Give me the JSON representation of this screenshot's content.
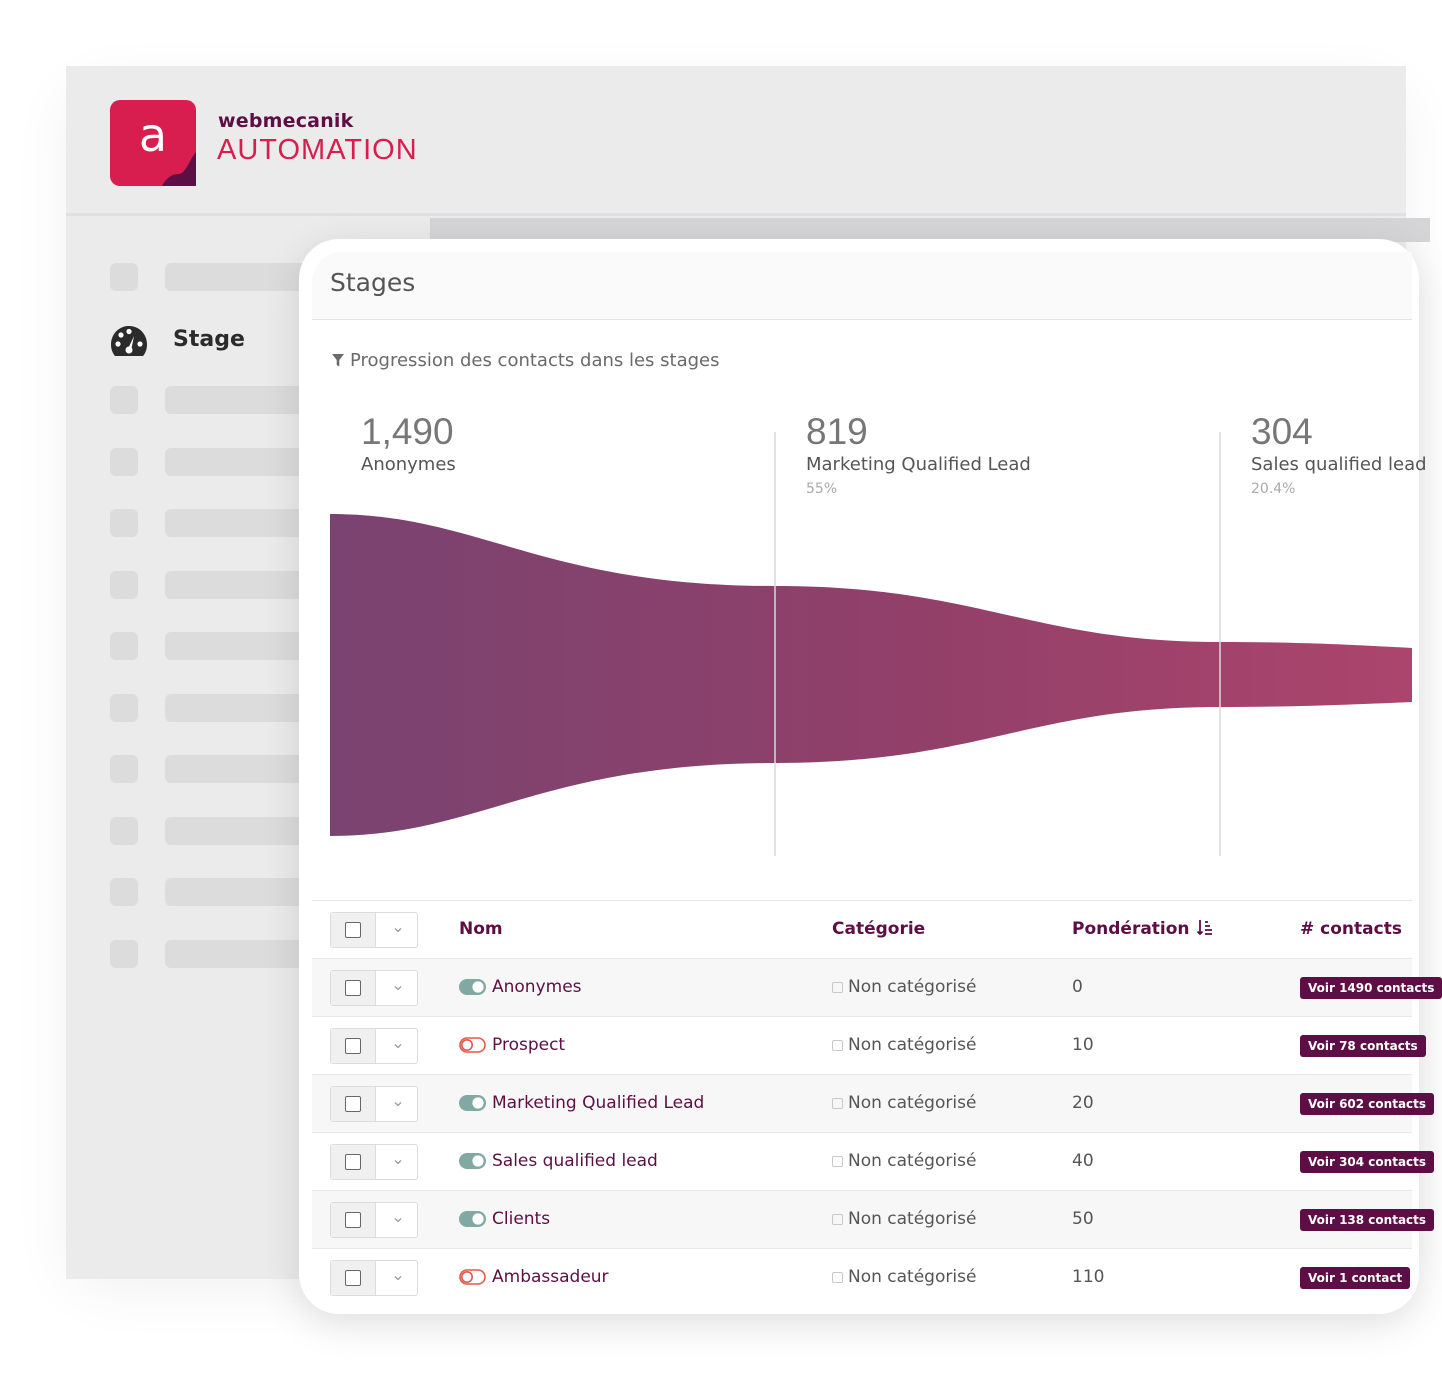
{
  "brand": {
    "logo_letter": "a",
    "name": "webmecanik",
    "product": "AUTOMATION",
    "colors": {
      "primary": "#d81e4e",
      "dark": "#5d0f45"
    }
  },
  "sidebar": {
    "active_item": {
      "label": "Stage",
      "icon": "gauge-icon"
    }
  },
  "panel": {
    "title": "Stages",
    "funnel_caption": "Progression des contacts dans les stages",
    "funnel_icon": "filter-icon"
  },
  "funnel": {
    "stages": [
      {
        "count": "1,490",
        "name": "Anonymes",
        "percent": ""
      },
      {
        "count": "819",
        "name": "Marketing Qualified Lead",
        "percent": "55%"
      },
      {
        "count": "304",
        "name": "Sales qualified lead",
        "percent": "20.4%"
      }
    ]
  },
  "table": {
    "headers": {
      "name": "Nom",
      "category": "Catégorie",
      "weight": "Pondération",
      "contacts": "# contacts"
    },
    "rows": [
      {
        "name": "Anonymes",
        "published": true,
        "category": "Non catégorisé",
        "weight": "0",
        "contacts": "Voir 1490 contacts"
      },
      {
        "name": "Prospect",
        "published": false,
        "category": "Non catégorisé",
        "weight": "10",
        "contacts": "Voir 78 contacts"
      },
      {
        "name": "Marketing Qualified Lead",
        "published": true,
        "category": "Non catégorisé",
        "weight": "20",
        "contacts": "Voir 602 contacts"
      },
      {
        "name": "Sales qualified lead",
        "published": true,
        "category": "Non catégorisé",
        "weight": "40",
        "contacts": "Voir 304 contacts"
      },
      {
        "name": "Clients",
        "published": true,
        "category": "Non catégorisé",
        "weight": "50",
        "contacts": "Voir 138 contacts"
      },
      {
        "name": "Ambassadeur",
        "published": false,
        "category": "Non catégorisé",
        "weight": "110",
        "contacts": "Voir 1 contact"
      }
    ]
  }
}
